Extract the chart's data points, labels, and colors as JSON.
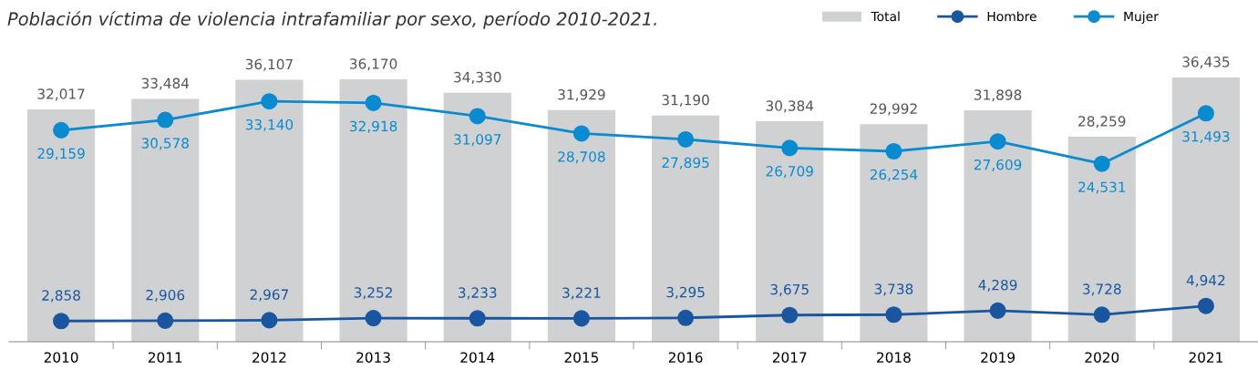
{
  "chart_data": {
    "type": "bar",
    "title": "Población víctima de violencia intrafamiliar por sexo, período 2010-2021.",
    "categories": [
      "2010",
      "2011",
      "2012",
      "2013",
      "2014",
      "2015",
      "2016",
      "2017",
      "2018",
      "2019",
      "2020",
      "2021"
    ],
    "series": [
      {
        "name": "Total",
        "color": "#d0d1d3",
        "values": [
          32017,
          33484,
          36107,
          36170,
          34330,
          31929,
          31190,
          30384,
          29992,
          31898,
          28259,
          36435
        ],
        "value_labels": [
          "32,017",
          "33,484",
          "36,107",
          "36,170",
          "34,330",
          "31,929",
          "31,190",
          "30,384",
          "29,992",
          "31,898",
          "28,259",
          "36,435"
        ]
      },
      {
        "name": "Hombre",
        "type": "line",
        "color": "#1a56a0",
        "values": [
          2858,
          2906,
          2967,
          3252,
          3233,
          3221,
          3295,
          3675,
          3738,
          4289,
          3728,
          4942
        ],
        "value_labels": [
          "2,858",
          "2,906",
          "2,967",
          "3,252",
          "3,233",
          "3,221",
          "3,295",
          "3,675",
          "3,738",
          "4,289",
          "3,728",
          "4,942"
        ]
      },
      {
        "name": "Mujer",
        "type": "line",
        "color": "#0a8bd0",
        "values": [
          29159,
          30578,
          33140,
          32918,
          31097,
          28708,
          27895,
          26709,
          26254,
          27609,
          24531,
          31493
        ],
        "value_labels": [
          "29,159",
          "30,578",
          "33,140",
          "32,918",
          "31,097",
          "28,708",
          "27,895",
          "26,709",
          "26,254",
          "27,609",
          "24,531",
          "31,493"
        ]
      }
    ],
    "legend": "top right",
    "marker": "circle",
    "line_style": "solid"
  }
}
